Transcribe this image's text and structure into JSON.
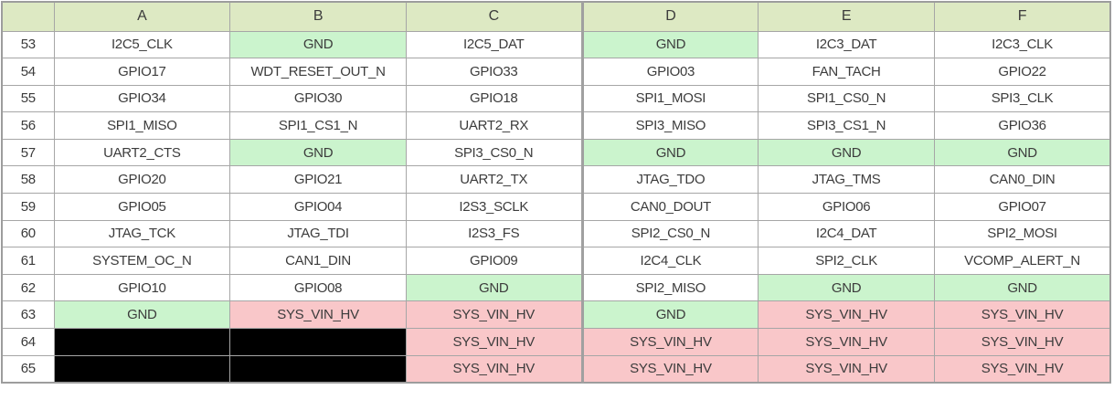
{
  "colors": {
    "header_bg": "#dde9c3",
    "cell_white": "#ffffff",
    "gnd_green": "#cbf4cd",
    "power_pink": "#f9c7c9",
    "blank_black": "#000000",
    "border_gray": "#a6a6a6",
    "text_dark": "#3c3c3c"
  },
  "table": {
    "corner_label": "",
    "column_headers": [
      "A",
      "B",
      "C",
      "D",
      "E",
      "F"
    ],
    "rows": [
      {
        "num": "53",
        "cells": [
          {
            "text": "I2C5_CLK",
            "fill": "cell_white"
          },
          {
            "text": "GND",
            "fill": "gnd_green"
          },
          {
            "text": "I2C5_DAT",
            "fill": "cell_white"
          },
          {
            "text": "GND",
            "fill": "gnd_green"
          },
          {
            "text": "I2C3_DAT",
            "fill": "cell_white"
          },
          {
            "text": "I2C3_CLK",
            "fill": "cell_white"
          }
        ]
      },
      {
        "num": "54",
        "cells": [
          {
            "text": "GPIO17",
            "fill": "cell_white"
          },
          {
            "text": "WDT_RESET_OUT_N",
            "fill": "cell_white"
          },
          {
            "text": "GPIO33",
            "fill": "cell_white"
          },
          {
            "text": "GPIO03",
            "fill": "cell_white"
          },
          {
            "text": "FAN_TACH",
            "fill": "cell_white"
          },
          {
            "text": "GPIO22",
            "fill": "cell_white"
          }
        ]
      },
      {
        "num": "55",
        "cells": [
          {
            "text": "GPIO34",
            "fill": "cell_white"
          },
          {
            "text": "GPIO30",
            "fill": "cell_white"
          },
          {
            "text": "GPIO18",
            "fill": "cell_white"
          },
          {
            "text": "SPI1_MOSI",
            "fill": "cell_white"
          },
          {
            "text": "SPI1_CS0_N",
            "fill": "cell_white"
          },
          {
            "text": "SPI3_CLK",
            "fill": "cell_white"
          }
        ]
      },
      {
        "num": "56",
        "cells": [
          {
            "text": "SPI1_MISO",
            "fill": "cell_white"
          },
          {
            "text": "SPI1_CS1_N",
            "fill": "cell_white"
          },
          {
            "text": "UART2_RX",
            "fill": "cell_white"
          },
          {
            "text": "SPI3_MISO",
            "fill": "cell_white"
          },
          {
            "text": "SPI3_CS1_N",
            "fill": "cell_white"
          },
          {
            "text": "GPIO36",
            "fill": "cell_white"
          }
        ]
      },
      {
        "num": "57",
        "cells": [
          {
            "text": "UART2_CTS",
            "fill": "cell_white"
          },
          {
            "text": "GND",
            "fill": "gnd_green"
          },
          {
            "text": "SPI3_CS0_N",
            "fill": "cell_white"
          },
          {
            "text": "GND",
            "fill": "gnd_green"
          },
          {
            "text": "GND",
            "fill": "gnd_green"
          },
          {
            "text": "GND",
            "fill": "gnd_green"
          }
        ]
      },
      {
        "num": "58",
        "cells": [
          {
            "text": "GPIO20",
            "fill": "cell_white"
          },
          {
            "text": "GPIO21",
            "fill": "cell_white"
          },
          {
            "text": "UART2_TX",
            "fill": "cell_white"
          },
          {
            "text": "JTAG_TDO",
            "fill": "cell_white"
          },
          {
            "text": "JTAG_TMS",
            "fill": "cell_white"
          },
          {
            "text": "CAN0_DIN",
            "fill": "cell_white"
          }
        ]
      },
      {
        "num": "59",
        "cells": [
          {
            "text": "GPIO05",
            "fill": "cell_white"
          },
          {
            "text": "GPIO04",
            "fill": "cell_white"
          },
          {
            "text": "I2S3_SCLK",
            "fill": "cell_white"
          },
          {
            "text": "CAN0_DOUT",
            "fill": "cell_white"
          },
          {
            "text": "GPIO06",
            "fill": "cell_white"
          },
          {
            "text": "GPIO07",
            "fill": "cell_white"
          }
        ]
      },
      {
        "num": "60",
        "cells": [
          {
            "text": "JTAG_TCK",
            "fill": "cell_white"
          },
          {
            "text": "JTAG_TDI",
            "fill": "cell_white"
          },
          {
            "text": "I2S3_FS",
            "fill": "cell_white"
          },
          {
            "text": "SPI2_CS0_N",
            "fill": "cell_white"
          },
          {
            "text": "I2C4_DAT",
            "fill": "cell_white"
          },
          {
            "text": "SPI2_MOSI",
            "fill": "cell_white"
          }
        ]
      },
      {
        "num": "61",
        "cells": [
          {
            "text": "SYSTEM_OC_N",
            "fill": "cell_white"
          },
          {
            "text": "CAN1_DIN",
            "fill": "cell_white"
          },
          {
            "text": "GPIO09",
            "fill": "cell_white"
          },
          {
            "text": "I2C4_CLK",
            "fill": "cell_white"
          },
          {
            "text": "SPI2_CLK",
            "fill": "cell_white"
          },
          {
            "text": "VCOMP_ALERT_N",
            "fill": "cell_white"
          }
        ]
      },
      {
        "num": "62",
        "cells": [
          {
            "text": "GPIO10",
            "fill": "cell_white"
          },
          {
            "text": "GPIO08",
            "fill": "cell_white"
          },
          {
            "text": "GND",
            "fill": "gnd_green"
          },
          {
            "text": "SPI2_MISO",
            "fill": "cell_white"
          },
          {
            "text": "GND",
            "fill": "gnd_green"
          },
          {
            "text": "GND",
            "fill": "gnd_green"
          }
        ]
      },
      {
        "num": "63",
        "cells": [
          {
            "text": "GND",
            "fill": "gnd_green"
          },
          {
            "text": "SYS_VIN_HV",
            "fill": "power_pink"
          },
          {
            "text": "SYS_VIN_HV",
            "fill": "power_pink"
          },
          {
            "text": "GND",
            "fill": "gnd_green"
          },
          {
            "text": "SYS_VIN_HV",
            "fill": "power_pink"
          },
          {
            "text": "SYS_VIN_HV",
            "fill": "power_pink"
          }
        ]
      },
      {
        "num": "64",
        "cells": [
          {
            "text": "",
            "fill": "blank_black"
          },
          {
            "text": "",
            "fill": "blank_black"
          },
          {
            "text": "SYS_VIN_HV",
            "fill": "power_pink"
          },
          {
            "text": "SYS_VIN_HV",
            "fill": "power_pink"
          },
          {
            "text": "SYS_VIN_HV",
            "fill": "power_pink"
          },
          {
            "text": "SYS_VIN_HV",
            "fill": "power_pink"
          }
        ]
      },
      {
        "num": "65",
        "cells": [
          {
            "text": "",
            "fill": "blank_black"
          },
          {
            "text": "",
            "fill": "blank_black"
          },
          {
            "text": "SYS_VIN_HV",
            "fill": "power_pink"
          },
          {
            "text": "SYS_VIN_HV",
            "fill": "power_pink"
          },
          {
            "text": "SYS_VIN_HV",
            "fill": "power_pink"
          },
          {
            "text": "SYS_VIN_HV",
            "fill": "power_pink"
          }
        ]
      }
    ]
  }
}
